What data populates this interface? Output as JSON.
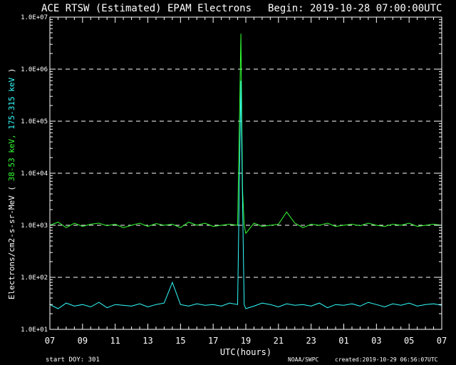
{
  "chart_data": {
    "type": "line",
    "title": "ACE RTSW (Estimated) EPAM Electrons",
    "begin_label": "Begin: 2019-10-28 07:00:00UTC",
    "xlabel": "UTC(hours)",
    "ylabel_prefix": "Electrons/cm2-s-sr-MeV",
    "ylabel_paren_open": "(",
    "ylabel_paren_close": ")",
    "ylabel_series_sep": ",",
    "y_scale": "log",
    "ylim": [
      10,
      10000000
    ],
    "y_ticks": [
      {
        "value": 10,
        "label": "1.0E+01"
      },
      {
        "value": 100,
        "label": "1.0E+02"
      },
      {
        "value": 1000,
        "label": "1.0E+03"
      },
      {
        "value": 10000,
        "label": "1.0E+04"
      },
      {
        "value": 100000,
        "label": "1.0E+05"
      },
      {
        "value": 1000000,
        "label": "1.0E+06"
      },
      {
        "value": 10000000,
        "label": "1.0E+07"
      }
    ],
    "x_range_hours": [
      0,
      24
    ],
    "x_ticks": [
      "07",
      "09",
      "11",
      "13",
      "15",
      "17",
      "19",
      "21",
      "23",
      "01",
      "03",
      "05",
      "07"
    ],
    "grid": "dashed horizontal at each decade",
    "series": [
      {
        "name": "38-53 keV",
        "color": "#33ff33",
        "x": [
          0,
          0.5,
          1,
          1.5,
          2,
          2.5,
          3,
          3.5,
          4,
          4.5,
          5,
          5.5,
          6,
          6.5,
          7,
          7.5,
          8,
          8.5,
          9,
          9.5,
          10,
          10.5,
          11,
          11.5,
          11.7,
          11.8,
          11.9,
          12,
          12.5,
          13,
          13.5,
          14,
          14.5,
          15,
          15.5,
          16,
          16.5,
          17,
          17.5,
          18,
          18.5,
          19,
          19.5,
          20,
          20.5,
          21,
          21.5,
          22,
          22.5,
          23,
          23.5,
          24
        ],
        "values": [
          1000,
          1150,
          900,
          1100,
          950,
          1050,
          1100,
          980,
          1050,
          900,
          1000,
          1100,
          950,
          1080,
          1000,
          1050,
          900,
          1150,
          1000,
          1100,
          950,
          1000,
          1050,
          1000,
          4800000,
          5000,
          1000,
          700,
          1100,
          950,
          1000,
          1050,
          1800,
          1100,
          900,
          1050,
          1000,
          1100,
          950,
          1000,
          1050,
          980,
          1100,
          1000,
          950,
          1050,
          1000,
          1100,
          950,
          1000,
          1050,
          1000
        ]
      },
      {
        "name": "175-315 keV",
        "color": "#33ffff",
        "x": [
          0,
          0.5,
          1,
          1.5,
          2,
          2.5,
          3,
          3.5,
          4,
          4.5,
          5,
          5.5,
          6,
          6.5,
          7,
          7.5,
          8,
          8.5,
          9,
          9.5,
          10,
          10.5,
          11,
          11.5,
          11.7,
          11.8,
          11.9,
          12,
          12.5,
          13,
          13.5,
          14,
          14.5,
          15,
          15.5,
          16,
          16.5,
          17,
          17.5,
          18,
          18.5,
          19,
          19.5,
          20,
          20.5,
          21,
          21.5,
          22,
          22.5,
          23,
          23.5,
          24
        ],
        "values": [
          30,
          25,
          32,
          28,
          30,
          27,
          33,
          26,
          30,
          29,
          28,
          31,
          27,
          30,
          32,
          80,
          30,
          28,
          31,
          29,
          30,
          28,
          32,
          30,
          600000,
          3000,
          30,
          25,
          28,
          32,
          30,
          27,
          31,
          29,
          30,
          28,
          32,
          26,
          30,
          29,
          31,
          28,
          33,
          30,
          27,
          31,
          29,
          32,
          28,
          30,
          31,
          29
        ]
      }
    ]
  },
  "footer": {
    "start_doy": "start DOY:  301",
    "credit": "NOAA/SWPC",
    "created": "created:2019-10-29 06:56:07UTC"
  }
}
